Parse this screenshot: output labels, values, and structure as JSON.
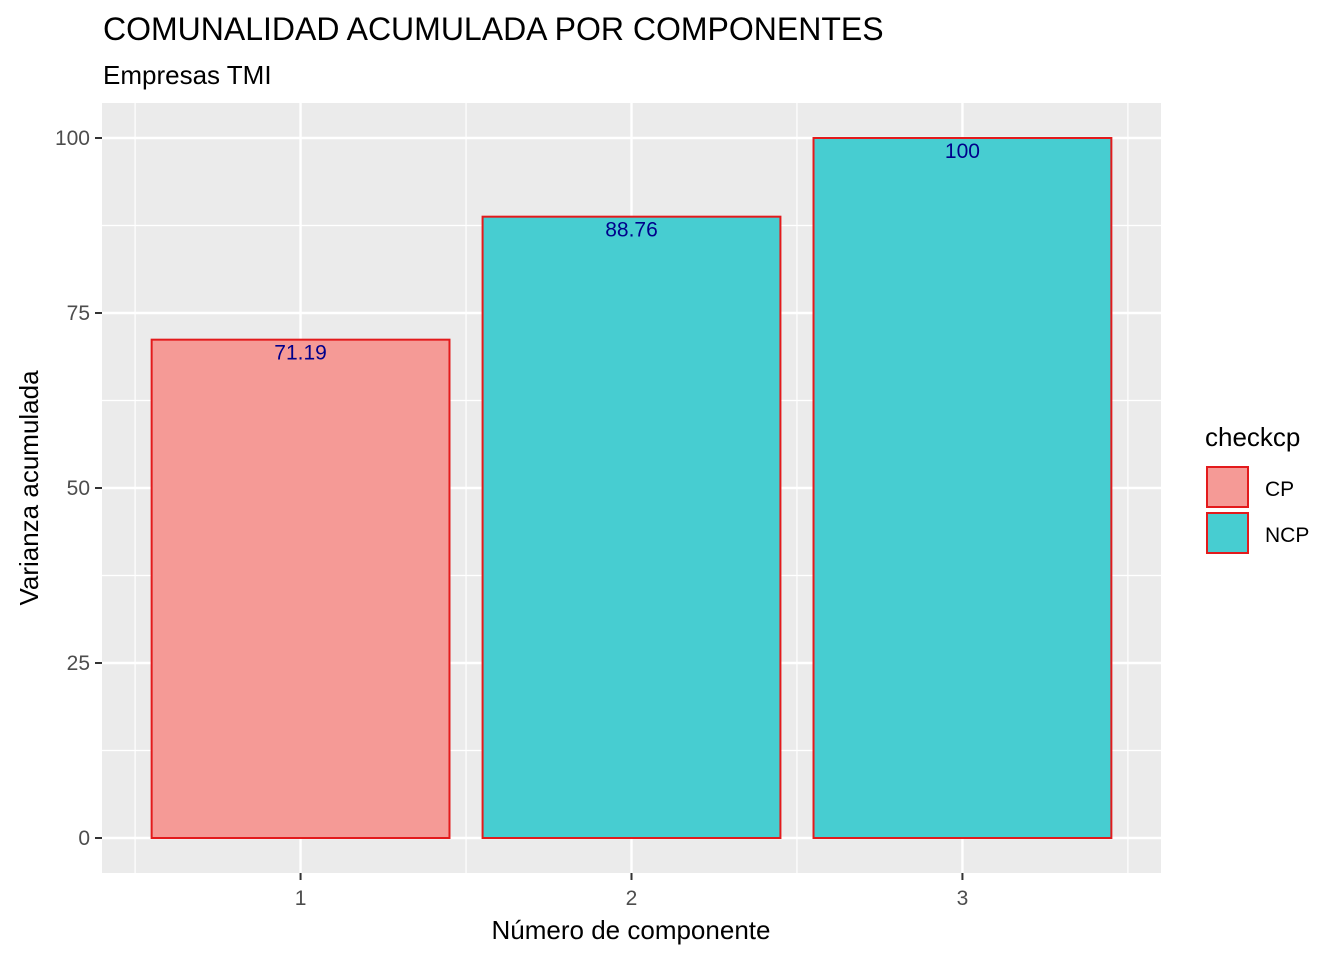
{
  "chart_data": {
    "type": "bar",
    "title": "COMUNALIDAD ACUMULADA POR COMPONENTES",
    "subtitle": "Empresas TMI",
    "xlabel": "Número de componente",
    "ylabel": "Varianza acumulada",
    "categories": [
      "1",
      "2",
      "3"
    ],
    "values": [
      71.19,
      88.76,
      100
    ],
    "value_labels": [
      "71.19",
      "88.76",
      "100"
    ],
    "groups": [
      "CP",
      "NCP",
      "NCP"
    ],
    "ylim": [
      -5,
      105
    ],
    "yticks": [
      0,
      25,
      50,
      75,
      100
    ],
    "ytick_labels": [
      "0",
      "25",
      "50",
      "75",
      "100"
    ],
    "grid": true,
    "legend": {
      "title": "checkcp",
      "position": "right",
      "items": [
        {
          "label": "CP",
          "color": "#F59A96"
        },
        {
          "label": "NCP",
          "color": "#47CDD1"
        }
      ]
    },
    "colors": {
      "panel_background": "#EBEBEB",
      "grid_line": "#FFFFFF",
      "bar_outline": "#E31A1C",
      "data_label": "#00008B",
      "tick_label": "#4D4D4D"
    }
  }
}
